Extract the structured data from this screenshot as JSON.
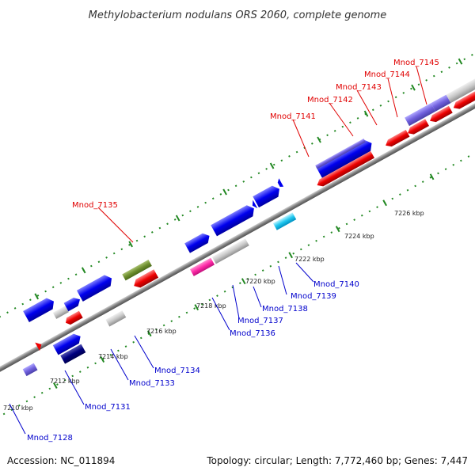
{
  "title": "Methylobacterium nodulans ORS 2060, complete genome",
  "footer": {
    "accession": "Accession: NC_011894",
    "summary": "Topology: circular; Length: 7,772,460 bp; Genes: 7,447"
  },
  "ticks": [
    "7210 kbp",
    "7212 kbp",
    "7214 kbp",
    "7216 kbp",
    "7218 kbp",
    "7220 kbp",
    "7222 kbp",
    "7224 kbp",
    "7226 kbp"
  ],
  "genes_upper": [
    "Mnod_7135",
    "Mnod_7141",
    "Mnod_7142",
    "Mnod_7143",
    "Mnod_7144",
    "Mnod_7145"
  ],
  "genes_lower": [
    "Mnod_7128",
    "Mnod_7131",
    "Mnod_7133",
    "Mnod_7134",
    "Mnod_7136",
    "Mnod_7137",
    "Mnod_7138",
    "Mnod_7139",
    "Mnod_7140"
  ],
  "colors": {
    "forward_cds": "#0000ee",
    "reverse_cds": "#ee0000",
    "backbone": "#808080",
    "gc_dots": "#228822",
    "upper_label": "#e00000",
    "lower_label": "#0000cc"
  }
}
